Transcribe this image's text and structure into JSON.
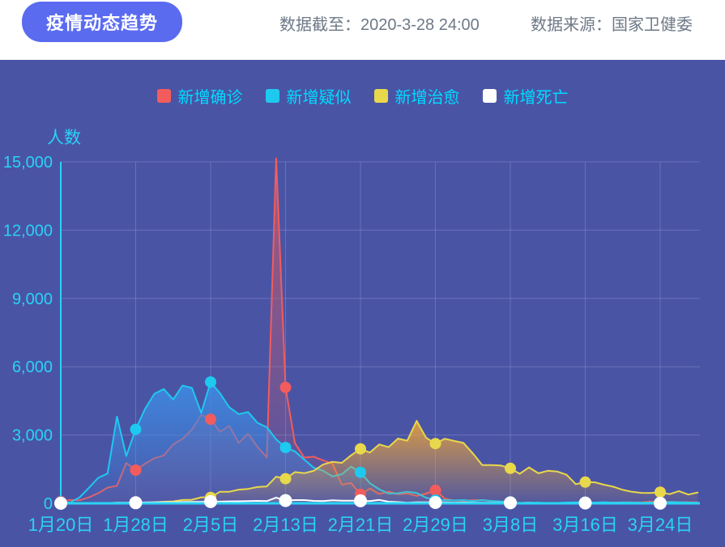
{
  "header": {
    "title_badge": "疫情动态趋势",
    "cutoff_label": "数据截至：",
    "cutoff_value": "2020-3-28 24:00",
    "source_label": "数据来源：",
    "source_value": "国家卫健委"
  },
  "colors": {
    "page_background": "#4a54a5",
    "header_background": "#ffffff",
    "badge_background": "#5a6bf0",
    "badge_text": "#ffffff",
    "header_text": "#6e7887",
    "axis": "#29d3f5",
    "tick_label": "#29d3f5",
    "legend_text": "#00dcff",
    "grid_line": "rgba(190,200,240,0.25)"
  },
  "chart_data": {
    "type": "line",
    "title": "疫情动态趋势",
    "xlabel": "",
    "ylabel": "人数",
    "ylim": [
      0,
      15000
    ],
    "grid": true,
    "legend_position": "top",
    "y_ticks": [
      0,
      3000,
      6000,
      9000,
      12000,
      15000
    ],
    "y_tick_labels": [
      "0",
      "3,000",
      "6,000",
      "9,000",
      "12,000",
      "15,000"
    ],
    "x_tick_labels": [
      "1月20日",
      "1月28日",
      "2月5日",
      "2月13日",
      "2月21日",
      "2月29日",
      "3月8日",
      "3月16日",
      "3月24日"
    ],
    "tick_interval_days": 8,
    "marker_indices": [
      0,
      8,
      16,
      24,
      32,
      40,
      48,
      56,
      64
    ],
    "dates": [
      "1月20日",
      "1月21日",
      "1月22日",
      "1月23日",
      "1月24日",
      "1月25日",
      "1月26日",
      "1月27日",
      "1月28日",
      "1月29日",
      "1月30日",
      "1月31日",
      "2月1日",
      "2月2日",
      "2月3日",
      "2月4日",
      "2月5日",
      "2月6日",
      "2月7日",
      "2月8日",
      "2月9日",
      "2月10日",
      "2月11日",
      "2月12日",
      "2月13日",
      "2月14日",
      "2月15日",
      "2月16日",
      "2月17日",
      "2月18日",
      "2月19日",
      "2月20日",
      "2月21日",
      "2月22日",
      "2月23日",
      "2月24日",
      "2月25日",
      "2月26日",
      "2月27日",
      "2月28日",
      "2月29日",
      "3月1日",
      "3月2日",
      "3月3日",
      "3月4日",
      "3月5日",
      "3月6日",
      "3月7日",
      "3月8日",
      "3月9日",
      "3月10日",
      "3月11日",
      "3月12日",
      "3月13日",
      "3月14日",
      "3月15日",
      "3月16日",
      "3月17日",
      "3月18日",
      "3月19日",
      "3月20日",
      "3月21日",
      "3月22日",
      "3月23日",
      "3月24日",
      "3月25日",
      "3月26日",
      "3月27日",
      "3月28日"
    ],
    "series": [
      {
        "key": "confirmed",
        "name": "新增确诊",
        "color": "#f25c5c",
        "area_top": "rgba(242,92,92,0.55)",
        "area_bottom": "rgba(242,92,92,0.05)",
        "values": [
          77,
          149,
          131,
          259,
          444,
          688,
          769,
          1771,
          1459,
          1737,
          1982,
          2102,
          2590,
          2829,
          3235,
          3887,
          3694,
          3143,
          3399,
          2656,
          3062,
          2478,
          2015,
          15152,
          5090,
          2641,
          2009,
          2048,
          1886,
          1749,
          820,
          889,
          397,
          648,
          409,
          508,
          406,
          433,
          327,
          427,
          573,
          202,
          125,
          119,
          139,
          143,
          99,
          44,
          40,
          19,
          24,
          15,
          8,
          11,
          20,
          16,
          21,
          13,
          34,
          39,
          41,
          46,
          39,
          78,
          47,
          67,
          55,
          54,
          45
        ]
      },
      {
        "key": "suspected",
        "name": "新增疑似",
        "color": "#1ec9f0",
        "area_top": "rgba(62,140,228,0.9)",
        "area_bottom": "rgba(62,140,228,0.08)",
        "values": [
          54,
          37,
          257,
          680,
          1118,
          1309,
          3806,
          2077,
          3248,
          4148,
          4812,
          5019,
          4562,
          5173,
          5072,
          3971,
          5328,
          4833,
          4214,
          3916,
          4008,
          3536,
          3342,
          2807,
          2450,
          2277,
          1918,
          1563,
          1432,
          1185,
          1277,
          1614,
          1361,
          882,
          620,
          430,
          439,
          508,
          452,
          248,
          141,
          141,
          129,
          143,
          102,
          143,
          102,
          84,
          59,
          17,
          31,
          33,
          9,
          17,
          36,
          41,
          45,
          31,
          48,
          31,
          39,
          35,
          29,
          35,
          33,
          58,
          49,
          37,
          28
        ]
      },
      {
        "key": "cured",
        "name": "新增治愈",
        "color": "#e8d84b",
        "area_top": "rgba(240,166,54,0.85)",
        "area_bottom": "rgba(240,166,54,0.05)",
        "values": [
          0,
          0,
          3,
          6,
          3,
          11,
          9,
          18,
          43,
          21,
          47,
          72,
          85,
          147,
          157,
          262,
          261,
          510,
          510,
          600,
          632,
          716,
          744,
          1171,
          1081,
          1373,
          1323,
          1425,
          1701,
          1824,
          1779,
          2109,
          2393,
          2230,
          2589,
          2467,
          2842,
          2750,
          3622,
          2885,
          2623,
          2837,
          2742,
          2652,
          2189,
          1681,
          1678,
          1661,
          1535,
          1297,
          1578,
          1318,
          1430,
          1398,
          1254,
          838,
          930,
          923,
          819,
          730,
          590,
          504,
          459,
          456,
          491,
          401,
          537,
          383,
          477
        ]
      },
      {
        "key": "death",
        "name": "新增死亡",
        "color": "#ffffff",
        "area_top": "rgba(255,255,255,0.18)",
        "area_bottom": "rgba(255,255,255,0)",
        "values": [
          0,
          8,
          8,
          8,
          16,
          15,
          24,
          26,
          26,
          38,
          43,
          46,
          45,
          57,
          64,
          65,
          73,
          73,
          86,
          89,
          97,
          108,
          97,
          254,
          121,
          143,
          142,
          105,
          98,
          136,
          114,
          118,
          109,
          97,
          150,
          71,
          52,
          29,
          44,
          47,
          35,
          42,
          31,
          38,
          31,
          30,
          28,
          27,
          22,
          17,
          22,
          11,
          7,
          13,
          10,
          14,
          13,
          11,
          8,
          3,
          7,
          6,
          9,
          7,
          4,
          6,
          5,
          3,
          5
        ]
      }
    ]
  }
}
